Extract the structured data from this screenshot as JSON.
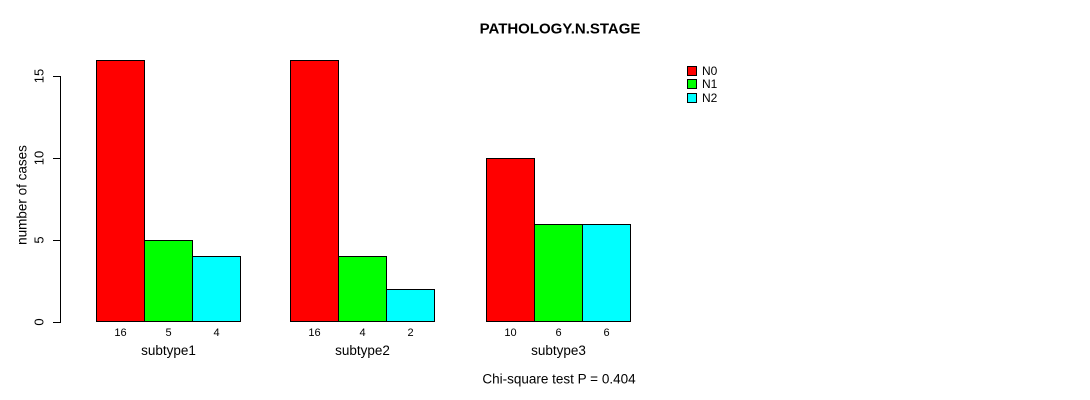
{
  "chart_data": {
    "type": "bar",
    "title": "PATHOLOGY.N.STAGE",
    "xlabel": "",
    "ylabel": "number of cases",
    "categories": [
      "subtype1",
      "subtype2",
      "subtype3"
    ],
    "series": [
      {
        "name": "N0",
        "color": "#ff0000",
        "values": [
          16,
          16,
          10
        ]
      },
      {
        "name": "N1",
        "color": "#00ff00",
        "values": [
          5,
          4,
          6
        ]
      },
      {
        "name": "N2",
        "color": "#00ffff",
        "values": [
          4,
          2,
          6
        ]
      }
    ],
    "bar_value_labels": true,
    "yticks": [
      0,
      5,
      10,
      15
    ],
    "axis_max": 15,
    "grid": false,
    "legend_position": "top-right-outside",
    "footnote": "Chi-square test P = 0.404"
  }
}
